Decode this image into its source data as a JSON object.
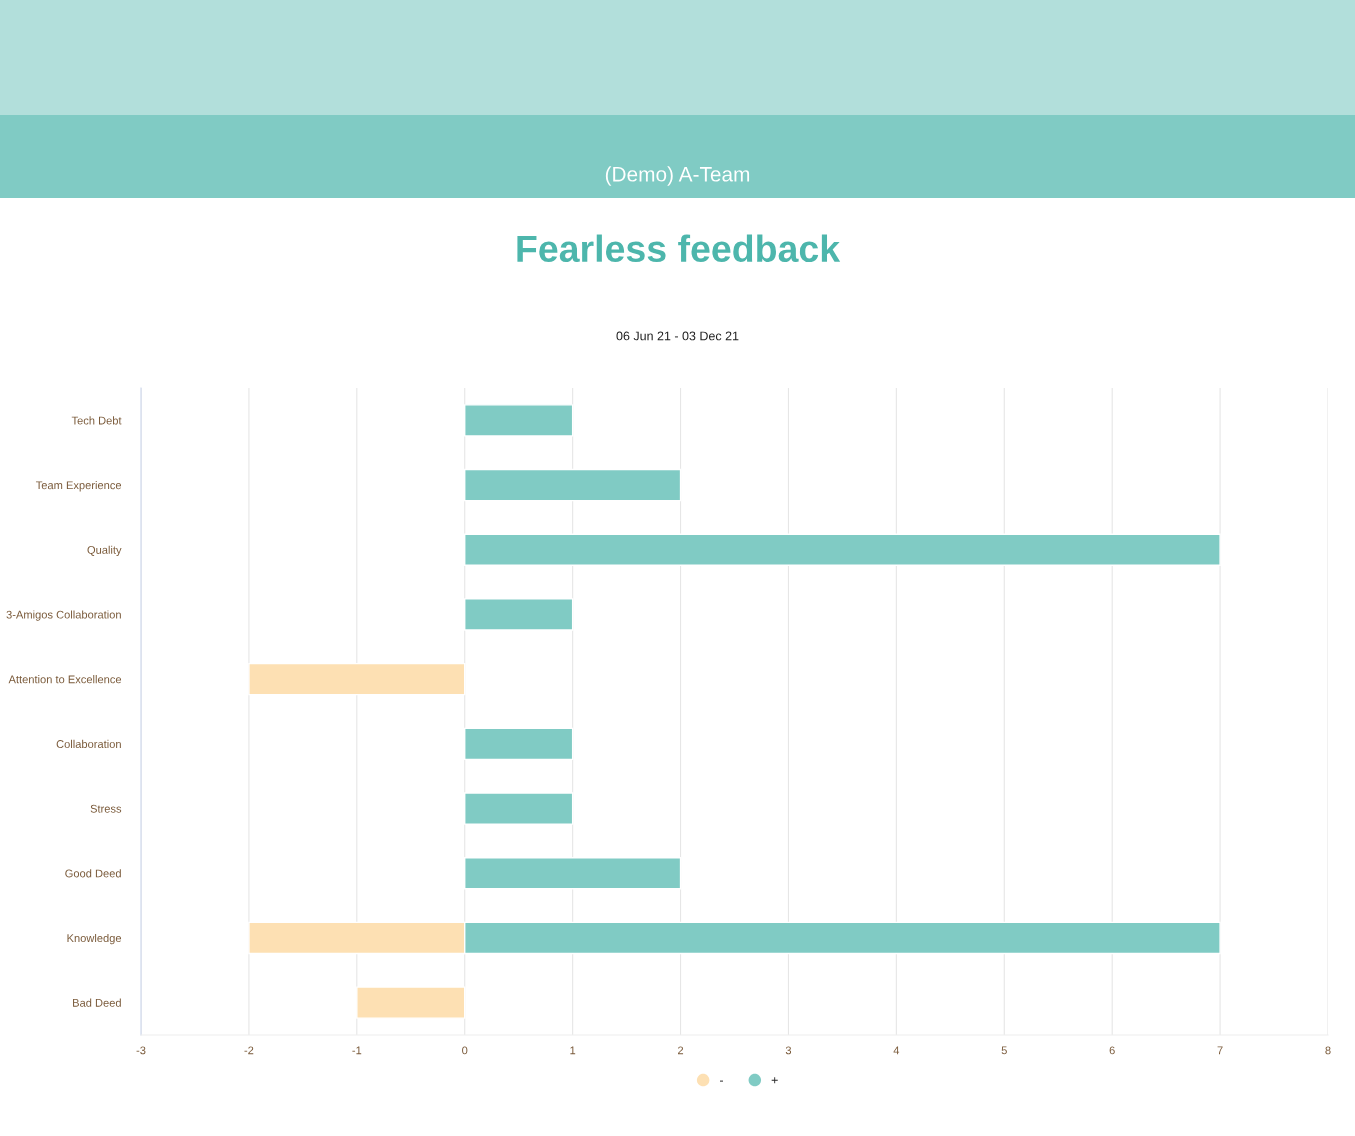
{
  "chart_data": {
    "type": "bar",
    "orientation": "horizontal",
    "subtitle": "(Demo) A-Team",
    "title": "Fearless feedback",
    "annotations": [
      "06 Jun 21 - 03 Dec 21"
    ],
    "categories": [
      "Tech Debt",
      "Team Experience",
      "Quality",
      "3-Amigos Collaboration",
      "Attention to Excellence",
      "Collaboration",
      "Stress",
      "Good Deed",
      "Knowledge",
      "Bad Deed"
    ],
    "series": [
      {
        "name": "-",
        "color": "#fde0b3",
        "values": [
          null,
          null,
          null,
          null,
          -2,
          null,
          null,
          null,
          -2,
          -1
        ]
      },
      {
        "name": "+",
        "color": "#80cbc4",
        "values": [
          1,
          2,
          7,
          1,
          null,
          1,
          1,
          2,
          7,
          null
        ]
      }
    ],
    "xlim": [
      -3,
      8
    ],
    "xticks": [
      -3,
      -2,
      -1,
      0,
      1,
      2,
      3,
      4,
      5,
      6,
      7,
      8
    ],
    "grid": "x",
    "legend": "bottom"
  }
}
